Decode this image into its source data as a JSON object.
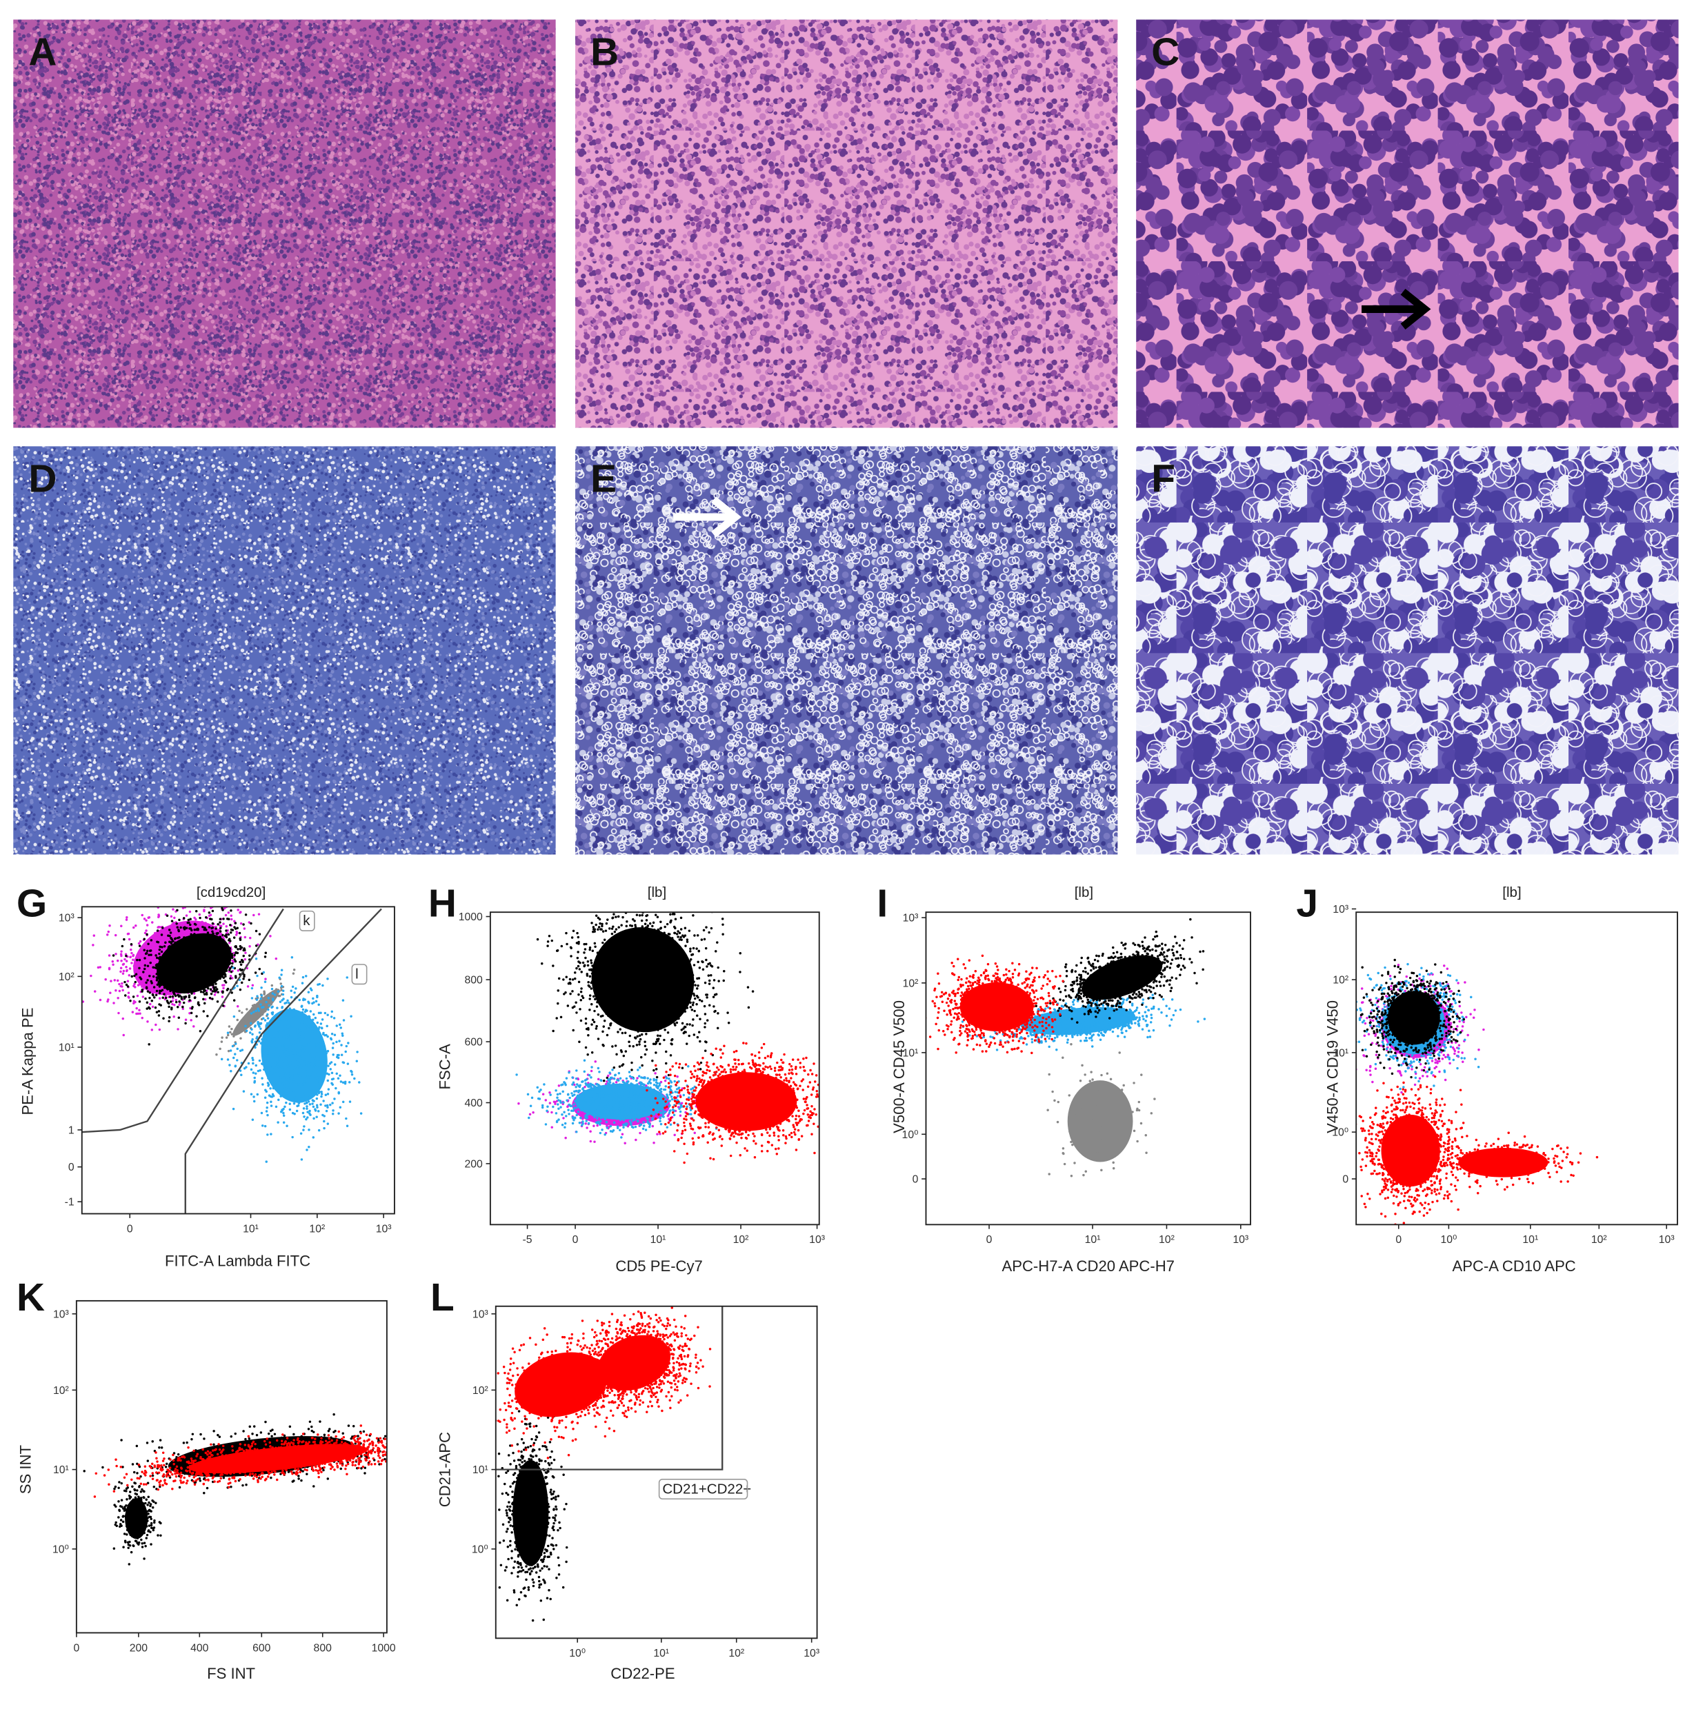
{
  "panels": [
    {
      "label": "A"
    },
    {
      "label": "B"
    },
    {
      "label": "C"
    },
    {
      "label": "D"
    },
    {
      "label": "E"
    },
    {
      "label": "F"
    },
    {
      "label": "G",
      "title": "[cd19cd20]",
      "y_label": "PE-A Kappa PE",
      "x_label": "FITC-A Lambda FITC",
      "yticks": [
        "10³",
        "10²",
        "10¹",
        "1",
        "0",
        "-1"
      ],
      "xticks": [
        "0",
        "10¹",
        "10²",
        "10³"
      ],
      "gates": [
        "k",
        "l"
      ]
    },
    {
      "label": "H",
      "title": "[lb]",
      "y_label": "FSC-A",
      "x_label": "CD5 PE-Cy7",
      "yticks": [
        "1000",
        "800",
        "600",
        "400",
        "200"
      ],
      "xticks": [
        "-5",
        "0",
        "10¹",
        "10²",
        "10³"
      ]
    },
    {
      "label": "I",
      "title": "[lb]",
      "y_label": "V500-A CD45 V500",
      "x_label": "APC-H7-A CD20 APC-H7",
      "yticks": [
        "10³",
        "10²",
        "10¹",
        "10⁰",
        "0"
      ],
      "xticks": [
        "0",
        "10¹",
        "10²",
        "10³"
      ]
    },
    {
      "label": "J",
      "title": "[lb]",
      "y_label": "V450-A CD19 V450",
      "x_label": "APC-A CD10 APC",
      "yticks": [
        "10³",
        "10²",
        "10¹",
        "10⁰",
        "0"
      ],
      "xticks": [
        "0",
        "10⁰",
        "10¹",
        "10²",
        "10³"
      ]
    },
    {
      "label": "K",
      "y_label": "SS INT",
      "x_label": "FS INT",
      "yticks": [
        "10³",
        "10²",
        "10¹",
        "10⁰"
      ],
      "xticks": [
        "0",
        "200",
        "400",
        "600",
        "800",
        "1000"
      ]
    },
    {
      "label": "L",
      "y_label": "CD21-APC",
      "x_label": "CD22-PE",
      "yticks": [
        "10³",
        "10²",
        "10¹",
        "10⁰"
      ],
      "xticks": [
        "10⁰",
        "10¹",
        "10²",
        "10³"
      ],
      "gates": [
        "CD21+CD22+"
      ]
    }
  ]
}
